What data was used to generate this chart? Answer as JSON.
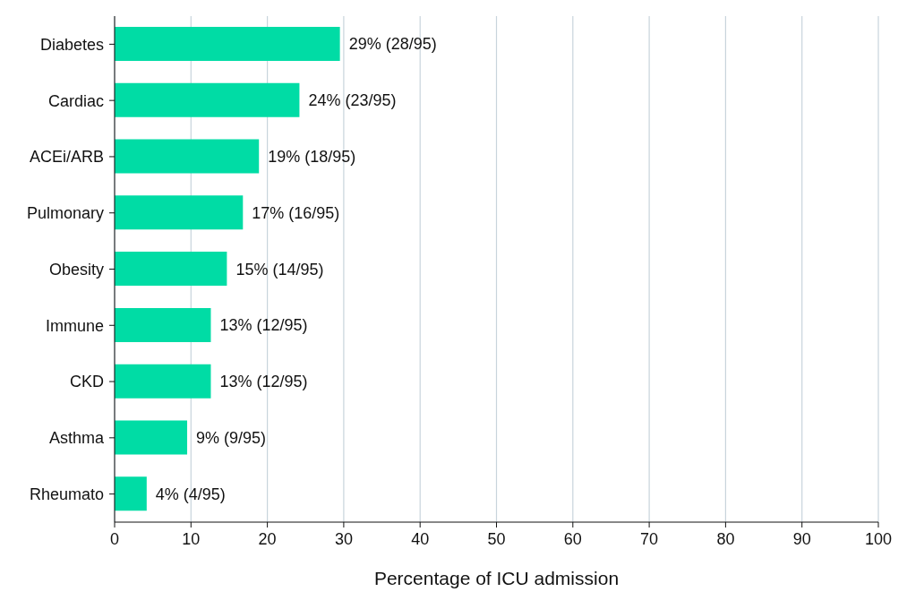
{
  "chart_data": {
    "type": "bar",
    "orientation": "horizontal",
    "xlabel": "Percentage of ICU admission",
    "categories": [
      "Diabetes",
      "Cardiac",
      "ACEi/ARB",
      "Pulmonary",
      "Obesity",
      "Immune",
      "CKD",
      "Asthma",
      "Rheumato"
    ],
    "values": [
      29.5,
      24.2,
      18.9,
      16.8,
      14.7,
      12.6,
      12.6,
      9.5,
      4.2
    ],
    "value_labels": [
      "29% (28/95)",
      "24% (23/95)",
      "19% (18/95)",
      "17% (16/95)",
      "15% (14/95)",
      "13% (12/95)",
      "13% (12/95)",
      "9% (9/95)",
      "4% (4/95)"
    ],
    "color": "#00dca5",
    "xlim": [
      0,
      100
    ],
    "xticks": [
      0,
      10,
      20,
      30,
      40,
      50,
      60,
      70,
      80,
      90,
      100
    ],
    "grid": "x"
  }
}
